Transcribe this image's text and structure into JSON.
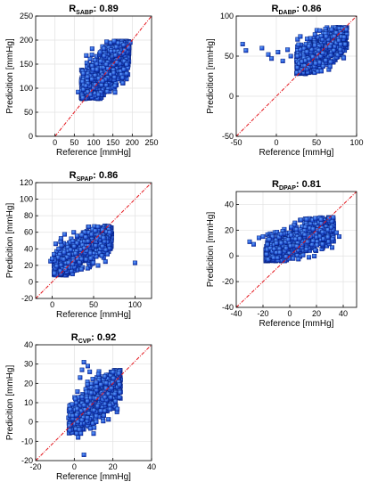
{
  "chart_data": [
    {
      "type": "scatter",
      "title_main": "R",
      "title_sub": "SABP",
      "title_value": ": 0.89",
      "xlabel": "Reference [mmHg]",
      "ylabel": "Predicition [mmHg]",
      "xlim": [
        -50,
        250
      ],
      "ylim": [
        0,
        250
      ],
      "xticks": [
        0,
        50,
        100,
        150,
        200,
        250
      ],
      "yticks": [
        0,
        50,
        100,
        150,
        200,
        250
      ],
      "grid": true,
      "reference_line": {
        "type": "identity",
        "color": "#e4141b",
        "style": "dash-dot"
      },
      "cloud": {
        "x_min": 68,
        "x_max": 192,
        "center_slope": 0.72,
        "center_intercept": 42,
        "spread": 22,
        "y_min": 78,
        "y_max": 198,
        "n": 1400
      },
      "outliers": [
        [
          60,
          92
        ],
        [
          72,
          80
        ],
        [
          190,
          185
        ],
        [
          195,
          195
        ]
      ],
      "marker_color": "#1f4fe0"
    },
    {
      "type": "scatter",
      "title_main": "R",
      "title_sub": "DABP",
      "title_value": ": 0.86",
      "xlabel": "Reference [mmHg]",
      "ylabel": "Predicition [mmHg]",
      "xlim": [
        -50,
        100
      ],
      "ylim": [
        -50,
        100
      ],
      "xticks": [
        -50,
        0,
        50,
        100
      ],
      "yticks": [
        -50,
        0,
        50,
        100
      ],
      "grid": true,
      "reference_line": {
        "type": "identity",
        "color": "#e4141b",
        "style": "dash-dot"
      },
      "cloud": {
        "x_min": 25,
        "x_max": 88,
        "center_slope": 0.62,
        "center_intercept": 22,
        "spread": 10,
        "y_min": 28,
        "y_max": 86,
        "n": 1100
      },
      "outliers": [
        [
          -42,
          65
        ],
        [
          -38,
          57
        ],
        [
          -18,
          60
        ],
        [
          -10,
          52
        ],
        [
          -6,
          47
        ],
        [
          2,
          55
        ],
        [
          8,
          44
        ],
        [
          14,
          58
        ],
        [
          18,
          50
        ]
      ],
      "marker_color": "#1f4fe0"
    },
    {
      "type": "scatter",
      "title_main": "R",
      "title_sub": "SPAP",
      "title_value": ": 0.86",
      "xlabel": "Reference [mmHg]",
      "ylabel": "Predicition [mmHg]",
      "xlim": [
        -20,
        120
      ],
      "ylim": [
        -20,
        120
      ],
      "xticks": [
        0,
        50,
        100
      ],
      "yticks": [
        -20,
        0,
        20,
        40,
        60,
        80,
        100,
        120
      ],
      "grid": true,
      "reference_line": {
        "type": "identity",
        "color": "#e4141b",
        "style": "dash-dot"
      },
      "cloud": {
        "x_min": 2,
        "x_max": 72,
        "center_slope": 0.55,
        "center_intercept": 17,
        "spread": 9,
        "y_min": 8,
        "y_max": 68,
        "n": 1200
      },
      "outliers": [
        [
          -2,
          25
        ],
        [
          0,
          28
        ],
        [
          100,
          23
        ]
      ],
      "marker_color": "#1f4fe0"
    },
    {
      "type": "scatter",
      "title_main": "R",
      "title_sub": "DPAP",
      "title_value": ": 0.81",
      "xlabel": "Reference [mmHg]",
      "ylabel": "Predicition [mmHg]",
      "xlim": [
        -40,
        50
      ],
      "ylim": [
        -40,
        50
      ],
      "xticks": [
        -40,
        -20,
        0,
        20,
        40
      ],
      "yticks": [
        -40,
        -20,
        0,
        20,
        40
      ],
      "grid": true,
      "reference_line": {
        "type": "identity",
        "color": "#e4141b",
        "style": "dash-dot"
      },
      "cloud": {
        "x_min": -18,
        "x_max": 33,
        "center_slope": 0.45,
        "center_intercept": 9,
        "spread": 6,
        "y_min": -4,
        "y_max": 30,
        "n": 1100
      },
      "outliers": [
        [
          -30,
          11
        ],
        [
          -27,
          9
        ],
        [
          -23,
          14
        ],
        [
          -20,
          15
        ],
        [
          35,
          18
        ],
        [
          37,
          15
        ]
      ],
      "marker_color": "#1f4fe0"
    },
    {
      "type": "scatter",
      "title_main": "R",
      "title_sub": "CVP",
      "title_value": ": 0.92",
      "xlabel": "Reference [mmHg]",
      "ylabel": "Predicition [mmHg]",
      "xlim": [
        -20,
        40
      ],
      "ylim": [
        -20,
        40
      ],
      "xticks": [
        -20,
        0,
        20,
        40
      ],
      "yticks": [
        -20,
        -10,
        0,
        10,
        20,
        30,
        40
      ],
      "grid": true,
      "reference_line": {
        "type": "identity",
        "color": "#e4141b",
        "style": "dash-dot"
      },
      "cloud": {
        "x_min": -3,
        "x_max": 24,
        "center_slope": 0.85,
        "center_intercept": 1,
        "spread": 5,
        "y_min": -6,
        "y_max": 27,
        "n": 1000
      },
      "outliers": [
        [
          5,
          31
        ],
        [
          7,
          29
        ],
        [
          4,
          27
        ],
        [
          8,
          26
        ],
        [
          3,
          23
        ],
        [
          5,
          -17
        ],
        [
          10,
          -6
        ],
        [
          2,
          -8
        ]
      ],
      "marker_color": "#1f4fe0"
    }
  ]
}
